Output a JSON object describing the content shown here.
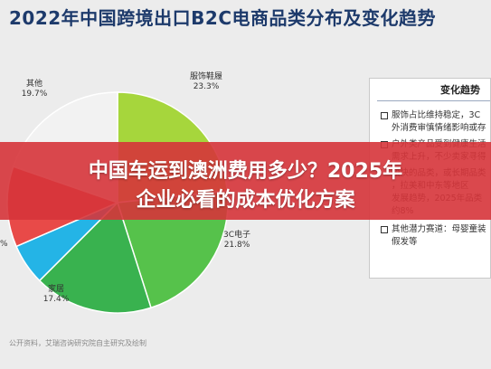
{
  "header": {
    "title": "2022年中国跨境出口B2C电商品类分布及变化趋势"
  },
  "chart_data": {
    "type": "pie",
    "slices": [
      {
        "label": "服饰鞋履",
        "value": 23.3,
        "value_text": "23.3%",
        "color": "#a6d63c"
      },
      {
        "label": "3C电子",
        "value": 21.8,
        "value_text": "21.8%",
        "color": "#56c24b"
      },
      {
        "label": "家居",
        "value": 17.4,
        "value_text": "17.4%",
        "color": "#39b24f"
      },
      {
        "label": "",
        "value": 6.0,
        "value_text": "",
        "color": "#24b4e6"
      },
      {
        "label": "",
        "value": 11.8,
        "value_text": "",
        "color": "#e84a48"
      },
      {
        "label": "其他",
        "value": 19.7,
        "value_text": "19.7%",
        "color": "#f2f2f2"
      }
    ],
    "partial_left_label": "%"
  },
  "panel": {
    "title": "变化趋势",
    "items": [
      {
        "text": "服饰占比维持稳定，3C"
      },
      {
        "text": "外消费审慎情绪影响或存"
      },
      {
        "text": "户外类产品受到健康生活"
      },
      {
        "text": "需求上升，不少卖家寻得"
      },
      {
        "text": "较快的品类，或长期品类"
      },
      {
        "text": "，拉美和中东等地区"
      },
      {
        "text": "发展趋势，2025年品类"
      },
      {
        "text": "约8%"
      },
      {
        "text": "其他潜力赛道：母婴童装"
      },
      {
        "text": "假发等"
      }
    ]
  },
  "source": {
    "text": "公开资料，艾瑞咨询研究院自主研究及绘制"
  },
  "banner": {
    "line1": "中国车运到澳洲费用多少？2025年",
    "line2": "企业必看的成本优化方案"
  }
}
